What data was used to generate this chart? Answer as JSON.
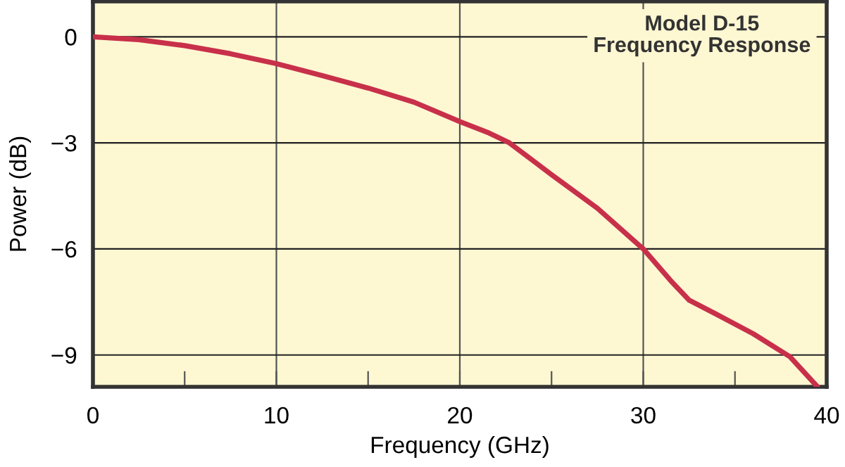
{
  "chart_data": {
    "type": "line",
    "title": "Model D-15\nFrequency Response",
    "xlabel": "Frequency (GHz)",
    "ylabel": "Power (dB)",
    "x": [
      0,
      2.5,
      5,
      7.5,
      10,
      12.5,
      15,
      17.5,
      20,
      21.5,
      22.7,
      25,
      27.5,
      30,
      31.5,
      32.5,
      34,
      36,
      38,
      39.5
    ],
    "series": [
      {
        "color": "#c8304a",
        "values": [
          0,
          -0.08,
          -0.25,
          -0.48,
          -0.76,
          -1.1,
          -1.45,
          -1.85,
          -2.4,
          -2.7,
          -3.0,
          -3.9,
          -4.85,
          -6.0,
          -6.9,
          -7.45,
          -7.85,
          -8.4,
          -9.05,
          -9.9
        ]
      }
    ],
    "xlim": [
      0,
      40
    ],
    "ylim": [
      -9.9,
      1.0
    ],
    "xticks": [
      0,
      {
        "value": 5,
        "label": null
      },
      10,
      {
        "value": 15,
        "label": null
      },
      20,
      {
        "value": 25,
        "label": null
      },
      30,
      {
        "value": 35,
        "label": null
      },
      40
    ],
    "yticks": [
      0,
      {
        "value": -3,
        "label": "−3"
      },
      {
        "value": -6,
        "label": "−6"
      },
      {
        "value": -9,
        "label": "−9"
      }
    ],
    "grid": true,
    "legend": false,
    "marker": "none",
    "line_style": "solid"
  }
}
